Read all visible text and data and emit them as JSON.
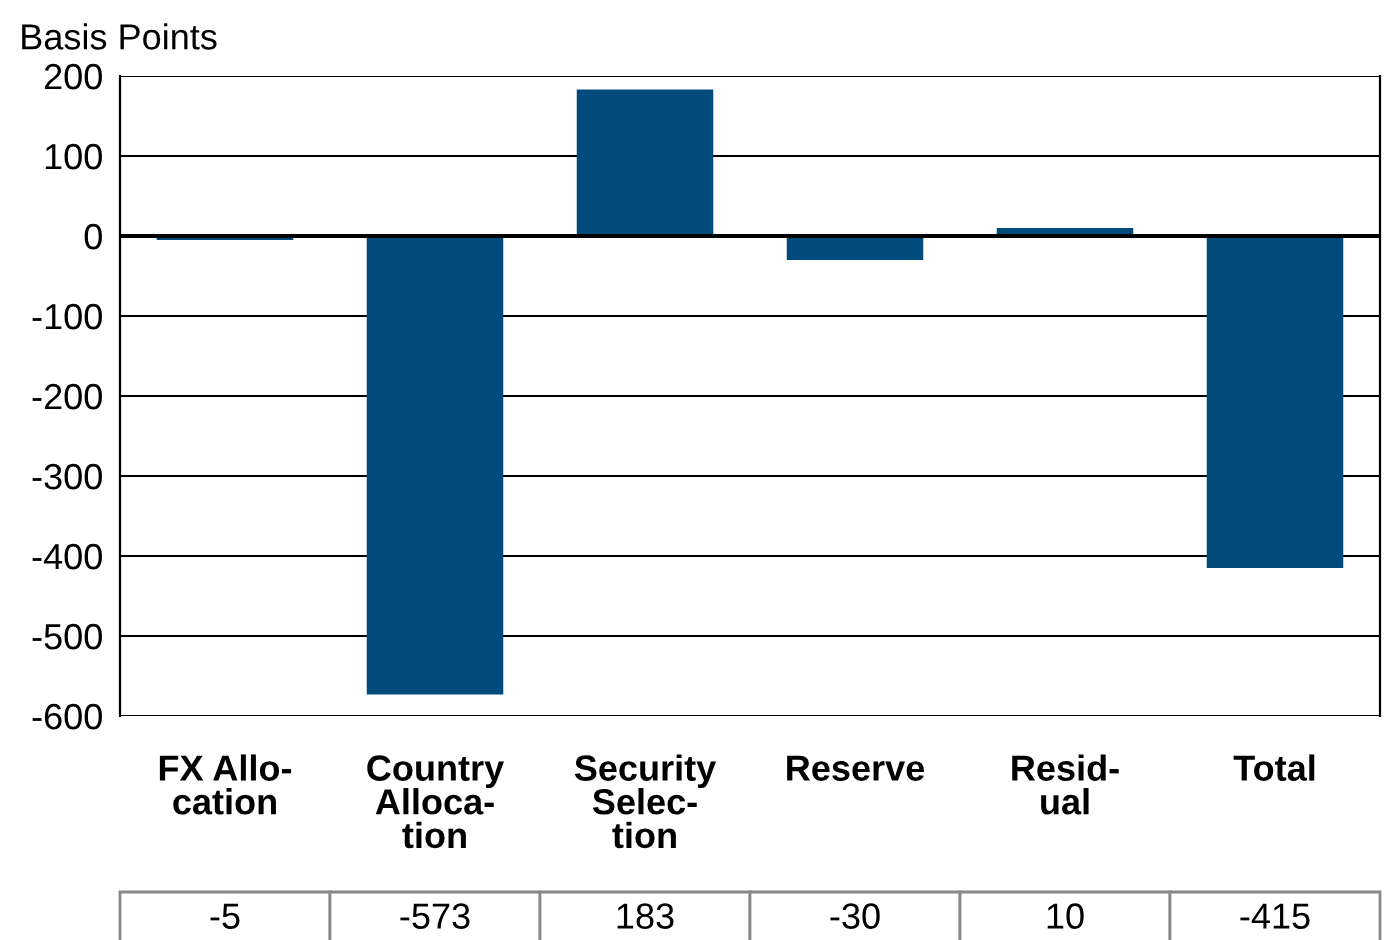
{
  "chart_data": {
    "type": "bar",
    "ylabel": "Basis Points",
    "categories": [
      "FX Allo-\ncation",
      "Country\nAlloca-\ntion",
      "Security\nSelec-\ntion",
      "Reserve",
      "Resid-\nual",
      "Total"
    ],
    "values": [
      -5,
      -573,
      183,
      -30,
      10,
      -415
    ],
    "color": "#004a7c",
    "ylim": [
      -600,
      200
    ],
    "yticks": [
      -600,
      -500,
      -400,
      -300,
      -200,
      -100,
      0,
      100,
      200
    ],
    "grid": "y",
    "data_labels": true
  }
}
